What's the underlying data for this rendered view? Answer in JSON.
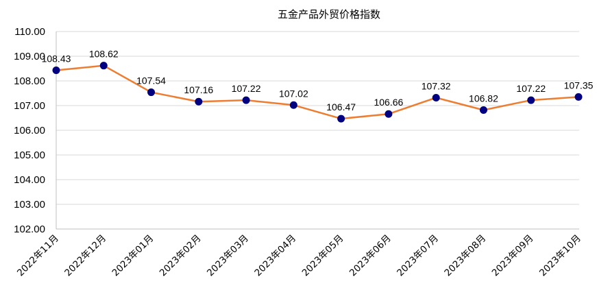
{
  "chart_data": {
    "type": "line",
    "title": "五金产品外贸价格指数",
    "categories": [
      "2022年11月",
      "2022年12月",
      "2023年01月",
      "2023年02月",
      "2023年03月",
      "2023年04月",
      "2023年05月",
      "2023年06月",
      "2023年07月",
      "2023年08月",
      "2023年09月",
      "2023年10月"
    ],
    "values": [
      108.43,
      108.62,
      107.54,
      107.16,
      107.22,
      107.02,
      106.47,
      106.66,
      107.32,
      106.82,
      107.22,
      107.35
    ],
    "data_labels": [
      "108.43",
      "108.62",
      "107.54",
      "107.16",
      "107.22",
      "107.02",
      "106.47",
      "106.66",
      "107.32",
      "106.82",
      "107.22",
      "107.35"
    ],
    "y_ticks": [
      "110.00",
      "109.00",
      "108.00",
      "107.00",
      "106.00",
      "105.00",
      "104.00",
      "103.00",
      "102.00"
    ],
    "ylim": [
      102,
      110
    ],
    "grid": true,
    "legend": "none",
    "line_color": "#ed7d31",
    "marker_color": "#000080"
  }
}
